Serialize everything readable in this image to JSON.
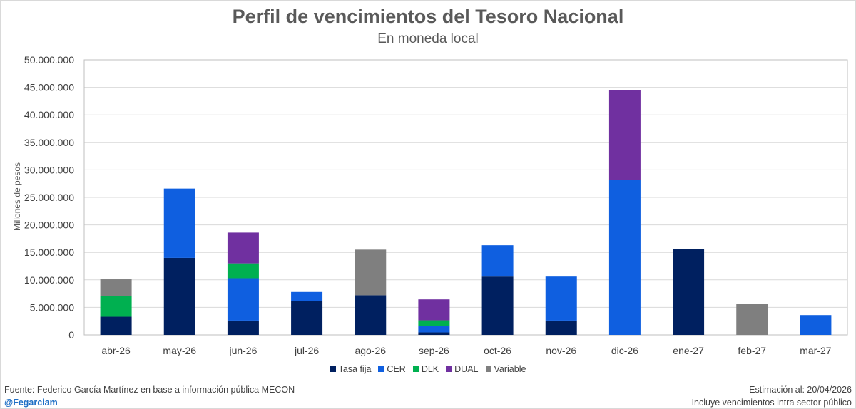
{
  "chart_data": {
    "type": "bar",
    "stacked": true,
    "title": "Perfil de vencimientos del Tesoro Nacional",
    "subtitle": "En moneda local",
    "ylabel": "Millones de pesos",
    "xlabel": "",
    "ylim": [
      0,
      50000000
    ],
    "y_ticks": [
      "0",
      "5.000.000",
      "10.000.000",
      "15.000.000",
      "20.000.000",
      "25.000.000",
      "30.000.000",
      "35.000.000",
      "40.000.000",
      "45.000.000",
      "50.000.000"
    ],
    "y_tick_values": [
      0,
      5000000,
      10000000,
      15000000,
      20000000,
      25000000,
      30000000,
      35000000,
      40000000,
      45000000,
      50000000
    ],
    "categories": [
      "abr-26",
      "may-26",
      "jun-26",
      "jul-26",
      "ago-26",
      "sep-26",
      "oct-26",
      "nov-26",
      "dic-26",
      "ene-27",
      "feb-27",
      "mar-27"
    ],
    "series": [
      {
        "name": "Tasa fija",
        "color": "#002060",
        "values": [
          3300000,
          14000000,
          2600000,
          6200000,
          7200000,
          450000,
          10600000,
          2600000,
          0,
          15600000,
          0,
          0
        ]
      },
      {
        "name": "CER",
        "color": "#0f5fe0",
        "values": [
          0,
          12600000,
          7700000,
          1600000,
          0,
          1200000,
          5700000,
          8000000,
          28200000,
          0,
          0,
          3600000
        ]
      },
      {
        "name": "DLK",
        "color": "#00b050",
        "values": [
          3700000,
          0,
          2700000,
          0,
          0,
          1000000,
          0,
          0,
          0,
          0,
          0,
          0
        ]
      },
      {
        "name": "DUAL",
        "color": "#7030a0",
        "values": [
          0,
          0,
          5600000,
          0,
          0,
          3800000,
          0,
          0,
          16300000,
          0,
          0,
          0
        ]
      },
      {
        "name": "Variable",
        "color": "#7f7f7f",
        "values": [
          3100000,
          0,
          0,
          0,
          8300000,
          0,
          0,
          0,
          0,
          0,
          5600000,
          0
        ]
      }
    ],
    "grid": true,
    "legend": "bottom"
  },
  "footer": {
    "source": "Fuente: Federico García Martínez en base a información pública MECON",
    "handle": "@Fegarciam",
    "estimate": "Estimación al: 20/04/2026",
    "note": "Incluye vencimientos intra sector público"
  }
}
